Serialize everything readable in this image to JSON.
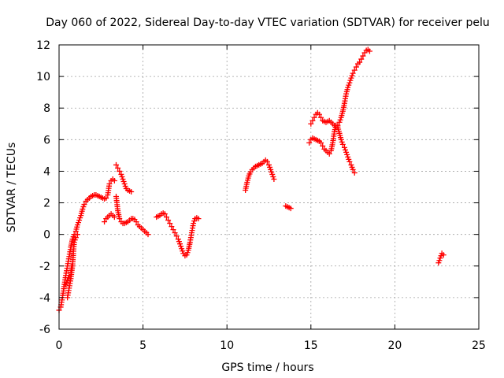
{
  "chart_data": {
    "type": "scatter",
    "title": "Day 060 of 2022, Sidereal Day-to-day VTEC variation (SDTVAR) for receiver pelu",
    "xlabel": "GPS time / hours",
    "ylabel": "SDTVAR / TECUs",
    "xlim": [
      0,
      25
    ],
    "ylim": [
      -6,
      12
    ],
    "xticks": [
      0,
      5,
      10,
      15,
      20,
      25
    ],
    "yticks": [
      -6,
      -4,
      -2,
      0,
      2,
      4,
      6,
      8,
      10,
      12
    ],
    "grid": true,
    "marker": "plus",
    "marker_color": "#ff0000",
    "series": [
      {
        "name": "SDTVAR",
        "segments": [
          [
            [
              0.0,
              -4.8
            ],
            [
              0.1,
              -4.6
            ],
            [
              0.2,
              -4.0
            ],
            [
              0.3,
              -3.3
            ],
            [
              0.4,
              -2.6
            ],
            [
              0.5,
              -2.0
            ],
            [
              0.6,
              -1.4
            ],
            [
              0.7,
              -0.8
            ],
            [
              0.8,
              -0.3
            ],
            [
              0.9,
              0.0
            ],
            [
              1.0,
              0.2
            ],
            [
              1.1,
              0.6
            ],
            [
              1.2,
              0.9
            ],
            [
              1.3,
              1.2
            ],
            [
              1.4,
              1.6
            ],
            [
              1.5,
              1.9
            ],
            [
              1.6,
              2.1
            ],
            [
              1.7,
              2.2
            ],
            [
              1.8,
              2.3
            ],
            [
              1.9,
              2.4
            ],
            [
              2.0,
              2.45
            ],
            [
              2.1,
              2.5
            ],
            [
              2.2,
              2.5
            ],
            [
              2.3,
              2.45
            ],
            [
              2.4,
              2.4
            ],
            [
              2.5,
              2.35
            ],
            [
              2.6,
              2.3
            ],
            [
              2.7,
              2.25
            ],
            [
              2.8,
              2.3
            ],
            [
              2.9,
              2.5
            ],
            [
              3.0,
              3.2
            ],
            [
              3.1,
              3.4
            ],
            [
              3.2,
              3.5
            ],
            [
              3.3,
              3.4
            ]
          ],
          [
            [
              0.5,
              -4.0
            ],
            [
              0.6,
              -3.4
            ],
            [
              0.7,
              -2.8
            ],
            [
              0.8,
              -2.0
            ],
            [
              0.85,
              -1.2
            ],
            [
              0.9,
              -0.5
            ],
            [
              1.0,
              -0.2
            ],
            [
              1.1,
              0.0
            ]
          ],
          [
            [
              0.4,
              -3.2
            ],
            [
              0.5,
              -2.9
            ],
            [
              0.6,
              -2.6
            ],
            [
              0.7,
              -2.4
            ],
            [
              0.75,
              -2.0
            ]
          ],
          [
            [
              2.7,
              0.8
            ],
            [
              2.8,
              1.0
            ],
            [
              2.9,
              1.1
            ],
            [
              3.0,
              1.2
            ],
            [
              3.1,
              1.3
            ],
            [
              3.2,
              1.2
            ],
            [
              3.3,
              1.1
            ]
          ],
          [
            [
              3.4,
              2.4
            ],
            [
              3.5,
              1.5
            ],
            [
              3.6,
              1.0
            ],
            [
              3.7,
              0.8
            ],
            [
              3.8,
              0.7
            ],
            [
              3.9,
              0.7
            ],
            [
              4.0,
              0.75
            ],
            [
              4.1,
              0.8
            ],
            [
              4.2,
              0.9
            ],
            [
              4.3,
              1.0
            ],
            [
              4.4,
              1.0
            ],
            [
              4.5,
              0.95
            ],
            [
              4.6,
              0.8
            ],
            [
              4.7,
              0.6
            ],
            [
              4.8,
              0.5
            ],
            [
              4.9,
              0.4
            ],
            [
              5.0,
              0.3
            ],
            [
              5.1,
              0.2
            ],
            [
              5.2,
              0.1
            ],
            [
              5.3,
              0.0
            ]
          ],
          [
            [
              3.4,
              4.4
            ],
            [
              3.5,
              4.2
            ],
            [
              3.6,
              4.0
            ],
            [
              3.7,
              3.8
            ],
            [
              3.8,
              3.5
            ],
            [
              3.9,
              3.2
            ],
            [
              4.0,
              2.9
            ],
            [
              4.1,
              2.8
            ],
            [
              4.2,
              2.75
            ],
            [
              4.3,
              2.7
            ]
          ],
          [
            [
              5.8,
              1.1
            ],
            [
              5.9,
              1.15
            ],
            [
              6.0,
              1.2
            ],
            [
              6.1,
              1.3
            ],
            [
              6.2,
              1.35
            ],
            [
              6.3,
              1.3
            ],
            [
              6.4,
              1.1
            ],
            [
              6.5,
              0.9
            ],
            [
              6.6,
              0.7
            ],
            [
              6.7,
              0.5
            ],
            [
              6.8,
              0.3
            ],
            [
              6.9,
              0.1
            ],
            [
              7.0,
              -0.1
            ],
            [
              7.1,
              -0.3
            ],
            [
              7.2,
              -0.6
            ],
            [
              7.3,
              -0.9
            ],
            [
              7.4,
              -1.2
            ],
            [
              7.5,
              -1.35
            ],
            [
              7.6,
              -1.3
            ],
            [
              7.7,
              -1.0
            ],
            [
              7.8,
              -0.5
            ],
            [
              7.9,
              0.1
            ],
            [
              8.0,
              0.7
            ],
            [
              8.1,
              1.0
            ],
            [
              8.2,
              1.05
            ],
            [
              8.3,
              1.0
            ]
          ],
          [
            [
              11.1,
              2.8
            ],
            [
              11.2,
              3.3
            ],
            [
              11.3,
              3.7
            ],
            [
              11.4,
              3.95
            ],
            [
              11.5,
              4.1
            ],
            [
              11.6,
              4.2
            ],
            [
              11.7,
              4.3
            ],
            [
              11.8,
              4.35
            ],
            [
              11.9,
              4.4
            ],
            [
              12.0,
              4.45
            ],
            [
              12.1,
              4.5
            ],
            [
              12.2,
              4.6
            ],
            [
              12.3,
              4.7
            ],
            [
              12.4,
              4.6
            ],
            [
              12.5,
              4.4
            ],
            [
              12.6,
              4.1
            ],
            [
              12.7,
              3.8
            ],
            [
              12.8,
              3.5
            ]
          ],
          [
            [
              13.5,
              1.8
            ],
            [
              13.6,
              1.75
            ],
            [
              13.7,
              1.7
            ],
            [
              13.8,
              1.65
            ]
          ],
          [
            [
              14.9,
              5.8
            ],
            [
              15.0,
              6.0
            ],
            [
              15.1,
              6.1
            ],
            [
              15.2,
              6.05
            ],
            [
              15.3,
              6.0
            ],
            [
              15.4,
              5.95
            ],
            [
              15.5,
              5.9
            ],
            [
              15.6,
              5.8
            ],
            [
              15.7,
              5.6
            ],
            [
              15.8,
              5.4
            ],
            [
              15.9,
              5.3
            ],
            [
              16.0,
              5.2
            ],
            [
              16.1,
              5.1
            ],
            [
              16.2,
              5.3
            ],
            [
              16.3,
              5.8
            ],
            [
              16.4,
              6.5
            ],
            [
              16.5,
              6.9
            ],
            [
              16.6,
              6.8
            ],
            [
              16.7,
              6.4
            ],
            [
              16.8,
              6.0
            ],
            [
              16.9,
              5.7
            ],
            [
              17.0,
              5.5
            ],
            [
              17.1,
              5.2
            ],
            [
              17.2,
              4.9
            ],
            [
              17.3,
              4.6
            ],
            [
              17.4,
              4.4
            ],
            [
              17.5,
              4.1
            ],
            [
              17.6,
              3.9
            ]
          ],
          [
            [
              15.0,
              7.0
            ],
            [
              15.1,
              7.2
            ],
            [
              15.2,
              7.4
            ],
            [
              15.3,
              7.6
            ],
            [
              15.4,
              7.7
            ],
            [
              15.5,
              7.6
            ],
            [
              15.6,
              7.4
            ],
            [
              15.7,
              7.2
            ],
            [
              15.8,
              7.15
            ],
            [
              15.9,
              7.1
            ],
            [
              16.0,
              7.15
            ],
            [
              16.1,
              7.2
            ],
            [
              16.2,
              7.1
            ],
            [
              16.3,
              7.0
            ],
            [
              16.4,
              6.9
            ],
            [
              16.5,
              6.8
            ],
            [
              16.6,
              6.9
            ],
            [
              16.7,
              7.1
            ],
            [
              16.8,
              7.4
            ],
            [
              16.9,
              7.8
            ],
            [
              17.0,
              8.3
            ],
            [
              17.1,
              8.9
            ],
            [
              17.2,
              9.3
            ],
            [
              17.3,
              9.6
            ],
            [
              17.4,
              9.9
            ],
            [
              17.5,
              10.2
            ],
            [
              17.6,
              10.4
            ],
            [
              17.7,
              10.6
            ],
            [
              17.8,
              10.8
            ],
            [
              17.9,
              10.9
            ],
            [
              18.0,
              11.1
            ],
            [
              18.1,
              11.3
            ],
            [
              18.2,
              11.5
            ],
            [
              18.3,
              11.65
            ],
            [
              18.4,
              11.7
            ],
            [
              18.5,
              11.6
            ]
          ],
          [
            [
              22.6,
              -1.8
            ],
            [
              22.7,
              -1.5
            ],
            [
              22.8,
              -1.2
            ],
            [
              22.9,
              -1.3
            ]
          ]
        ]
      }
    ]
  }
}
